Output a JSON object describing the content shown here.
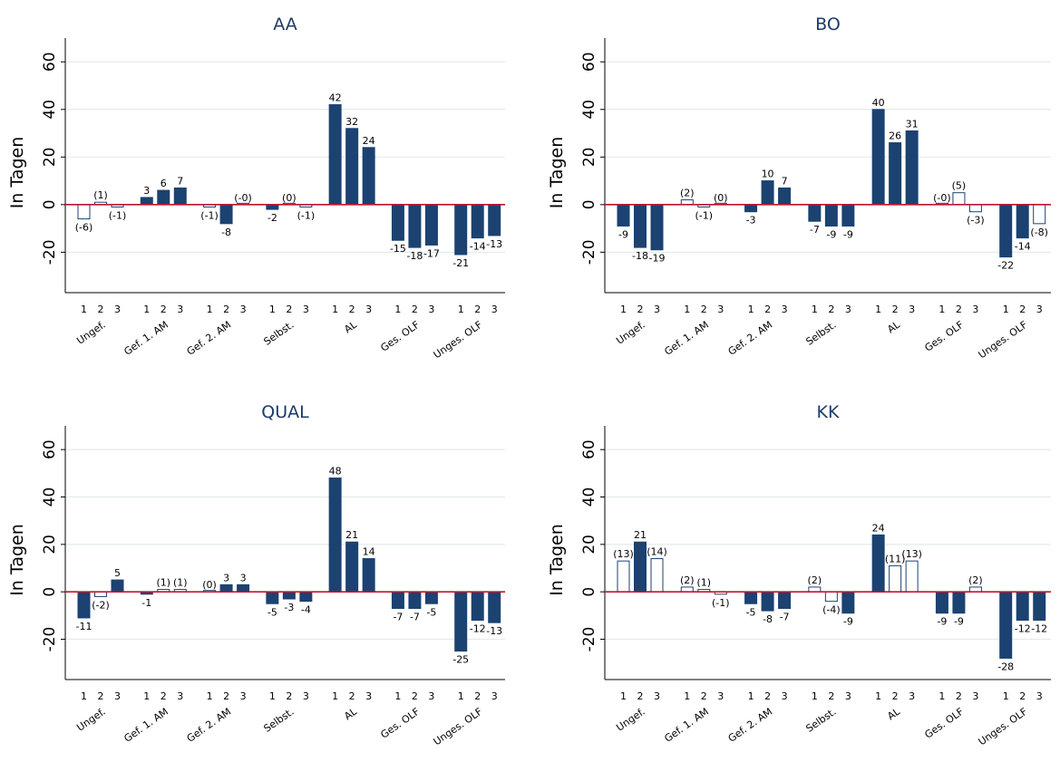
{
  "figure": {
    "ylabel": "In Tagen",
    "colors": {
      "bar": "#1b4271",
      "zero_line": "#c0142f",
      "grid": "#e3ecec",
      "title": "#1e3b6a"
    }
  },
  "chart_data": [
    {
      "type": "bar",
      "title": "AA",
      "ylabel": "In Tagen",
      "ylim": [
        -37,
        70
      ],
      "yticks": [
        -20,
        0,
        20,
        40,
        60
      ],
      "grid": true,
      "categories": [
        "Ungef.",
        "Gef. 1. AM",
        "Gef. 2. AM",
        "Selbst.",
        "AL",
        "Ges. OLF",
        "Unges. OLF"
      ],
      "subcategories": [
        "1",
        "2",
        "3"
      ],
      "values": [
        [
          -6,
          1,
          -1
        ],
        [
          3,
          6,
          7
        ],
        [
          -1,
          -8,
          0
        ],
        [
          -2,
          0,
          -1
        ],
        [
          42,
          32,
          24
        ],
        [
          -15,
          -18,
          -17
        ],
        [
          -21,
          -14,
          -13
        ]
      ],
      "labels": [
        [
          "(-6)",
          "(1)",
          "(-1)"
        ],
        [
          "3",
          "6",
          "7"
        ],
        [
          "(-1)",
          "-8",
          "(-0)"
        ],
        [
          "-2",
          "(0)",
          "(-1)"
        ],
        [
          "42",
          "32",
          "24"
        ],
        [
          "-15",
          "-18",
          "-17"
        ],
        [
          "-21",
          "-14",
          "-13"
        ]
      ],
      "significant": [
        [
          false,
          false,
          false
        ],
        [
          true,
          true,
          true
        ],
        [
          false,
          true,
          false
        ],
        [
          true,
          false,
          false
        ],
        [
          true,
          true,
          true
        ],
        [
          true,
          true,
          true
        ],
        [
          true,
          true,
          true
        ]
      ]
    },
    {
      "type": "bar",
      "title": "BO",
      "ylabel": "In Tagen",
      "ylim": [
        -37,
        70
      ],
      "yticks": [
        -20,
        0,
        20,
        40,
        60
      ],
      "grid": true,
      "categories": [
        "Ungef.",
        "Gef. 1. AM",
        "Gef. 2. AM",
        "Selbst.",
        "AL",
        "Ges. OLF",
        "Unges. OLF"
      ],
      "subcategories": [
        "1",
        "2",
        "3"
      ],
      "values": [
        [
          -9,
          -18,
          -19
        ],
        [
          2,
          -1,
          0
        ],
        [
          -3,
          10,
          7
        ],
        [
          -7,
          -9,
          -9
        ],
        [
          40,
          26,
          31
        ],
        [
          0,
          5,
          -3
        ],
        [
          -22,
          -14,
          -8
        ]
      ],
      "labels": [
        [
          "-9",
          "-18",
          "-19"
        ],
        [
          "(2)",
          "(-1)",
          "(0)"
        ],
        [
          "-3",
          "10",
          "7"
        ],
        [
          "-7",
          "-9",
          "-9"
        ],
        [
          "40",
          "26",
          "31"
        ],
        [
          "(-0)",
          "(5)",
          "(-3)"
        ],
        [
          "-22",
          "-14",
          "(-8)"
        ]
      ],
      "significant": [
        [
          true,
          true,
          true
        ],
        [
          false,
          false,
          false
        ],
        [
          true,
          true,
          true
        ],
        [
          true,
          true,
          true
        ],
        [
          true,
          true,
          true
        ],
        [
          false,
          false,
          false
        ],
        [
          true,
          true,
          false
        ]
      ]
    },
    {
      "type": "bar",
      "title": "QUAL",
      "ylabel": "In Tagen",
      "ylim": [
        -37,
        70
      ],
      "yticks": [
        -20,
        0,
        20,
        40,
        60
      ],
      "grid": true,
      "categories": [
        "Ungef.",
        "Gef. 1. AM",
        "Gef. 2. AM",
        "Selbst.",
        "AL",
        "Ges. OLF",
        "Unges. OLF"
      ],
      "subcategories": [
        "1",
        "2",
        "3"
      ],
      "values": [
        [
          -11,
          -2,
          5
        ],
        [
          -1,
          1,
          1
        ],
        [
          0,
          3,
          3
        ],
        [
          -5,
          -3,
          -4
        ],
        [
          48,
          21,
          14
        ],
        [
          -7,
          -7,
          -5
        ],
        [
          -25,
          -12,
          -13
        ]
      ],
      "labels": [
        [
          "-11",
          "(-2)",
          "5"
        ],
        [
          "-1",
          "(1)",
          "(1)"
        ],
        [
          "(0)",
          "3",
          "3"
        ],
        [
          "-5",
          "-3",
          "-4"
        ],
        [
          "48",
          "21",
          "14"
        ],
        [
          "-7",
          "-7",
          "-5"
        ],
        [
          "-25",
          "-12",
          "-13"
        ]
      ],
      "significant": [
        [
          true,
          false,
          true
        ],
        [
          true,
          false,
          false
        ],
        [
          false,
          true,
          true
        ],
        [
          true,
          true,
          true
        ],
        [
          true,
          true,
          true
        ],
        [
          true,
          true,
          true
        ],
        [
          true,
          true,
          true
        ]
      ]
    },
    {
      "type": "bar",
      "title": "KK",
      "ylabel": "In Tagen",
      "ylim": [
        -37,
        70
      ],
      "yticks": [
        -20,
        0,
        20,
        40,
        60
      ],
      "grid": true,
      "categories": [
        "Ungef.",
        "Gef. 1. AM",
        "Gef. 2. AM",
        "Selbst.",
        "AL",
        "Ges. OLF",
        "Unges. OLF"
      ],
      "subcategories": [
        "1",
        "2",
        "3"
      ],
      "values": [
        [
          13,
          21,
          14
        ],
        [
          2,
          1,
          -1
        ],
        [
          -5,
          -8,
          -7
        ],
        [
          2,
          -4,
          -9
        ],
        [
          24,
          11,
          13
        ],
        [
          -9,
          -9,
          2
        ],
        [
          -28,
          -12,
          -12
        ]
      ],
      "labels": [
        [
          "(13)",
          "21",
          "(14)"
        ],
        [
          "(2)",
          "(1)",
          "(-1)"
        ],
        [
          "-5",
          "-8",
          "-7"
        ],
        [
          "(2)",
          "(-4)",
          "-9"
        ],
        [
          "24",
          "(11)",
          "(13)"
        ],
        [
          "-9",
          "-9",
          "(2)"
        ],
        [
          "-28",
          "-12",
          "-12"
        ]
      ],
      "significant": [
        [
          false,
          true,
          false
        ],
        [
          false,
          false,
          false
        ],
        [
          true,
          true,
          true
        ],
        [
          false,
          false,
          true
        ],
        [
          true,
          false,
          false
        ],
        [
          true,
          true,
          false
        ],
        [
          true,
          true,
          true
        ]
      ]
    }
  ]
}
